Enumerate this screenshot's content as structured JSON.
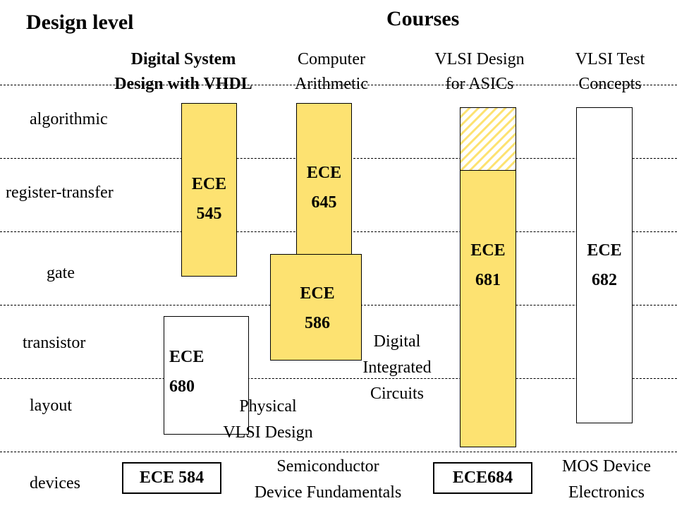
{
  "header": {
    "design_level": "Design level",
    "courses": "Courses"
  },
  "levels": [
    "algorithmic",
    "register-transfer",
    "gate",
    "transistor",
    "layout",
    "devices"
  ],
  "course_titles": {
    "digital_system": "Digital System\nDesign with VHDL",
    "computer_arithmetic": "Computer\nArithmetic",
    "vlsi_design": "VLSI Design\nfor ASICs",
    "vlsi_test": "VLSI Test\nConcepts"
  },
  "boxes": {
    "ece545": "ECE\n545",
    "ece645": "ECE\n645",
    "ece586": "ECE\n586",
    "ece680": "ECE\n680",
    "ece681": "ECE\n681",
    "ece682": "ECE\n682",
    "ece584": "ECE 584",
    "ece684": "ECE684"
  },
  "notes": {
    "digital_integrated": "Digital\nIntegrated\nCircuits",
    "physical_vlsi": "Physical\nVLSI Design",
    "semiconductor": "Semiconductor\nDevice Fundamentals",
    "mos_device": "MOS Device\nElectronics"
  },
  "colors": {
    "course_fill": "#fde271",
    "hatch": "#fde271"
  }
}
